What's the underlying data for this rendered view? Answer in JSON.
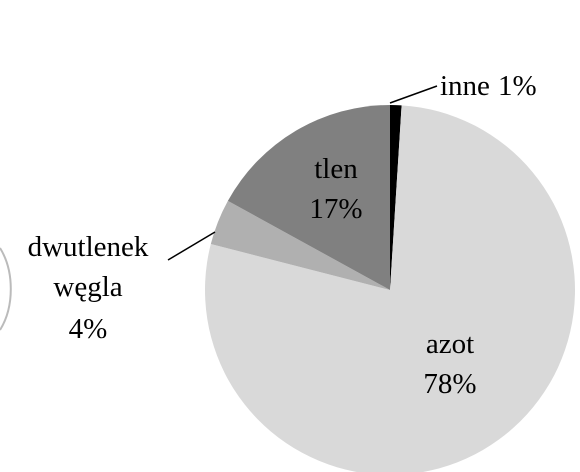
{
  "chart_data": {
    "type": "pie",
    "categories": [
      "inne",
      "azot",
      "dwutlenek węgla",
      "tlen"
    ],
    "values": [
      1,
      78,
      4,
      17
    ],
    "value_labels": [
      "1%",
      "78%",
      "4%",
      "17%"
    ],
    "colors": [
      "#000000",
      "#d9d9d9",
      "#b0b0b0",
      "#808080"
    ]
  }
}
